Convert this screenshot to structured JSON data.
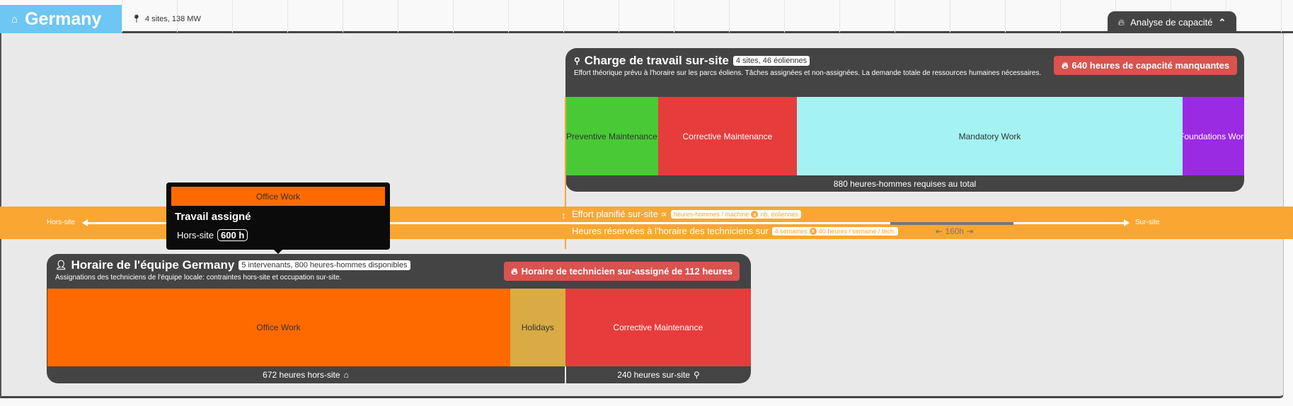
{
  "header": {
    "country": "Germany",
    "home_icon": "home-icon",
    "summary": "4 sites, 138 MW",
    "analyse_button": "Analyse de capacité"
  },
  "scale": {
    "hours_label": "160h",
    "hours": 160,
    "off_site_label": "Hors-site",
    "on_site_label": "Sur-site",
    "effort_text": "Effort planifié sur-site ∝",
    "effort_formula_a": "heures-hommes / machine",
    "effort_formula_b": "nb. éoliennes",
    "reserved_text": "Heures réservées à l'horaire des techniciens sur",
    "reserved_formula_a": "4 semaines",
    "reserved_formula_b": "40 heures / semaine / tech.",
    "times": "x"
  },
  "workload": {
    "title": "Charge de travail sur-site",
    "chip": "4 sites, 46 éoliennes",
    "description": "Effort théorique prévu à l'horaire sur les parcs éoliens. Tâches assignées et non-assignées. La demande totale de ressources humaines nécessaires.",
    "alert": "640 heures de capacité manquantes",
    "segments": [
      {
        "label": "Preventive Maintenance",
        "hours": 120,
        "color": "#4ac936",
        "text": "#333"
      },
      {
        "label": "Corrective Maintenance",
        "hours": 180,
        "color": "#e63c3c",
        "text": "#fff"
      },
      {
        "label": "Mandatory Work",
        "hours": 500,
        "color": "#a5f2f3",
        "text": "#333"
      },
      {
        "label": "Foundations Work",
        "hours": 80,
        "color": "#9b2ae3",
        "text": "#fff"
      }
    ],
    "total": "880 heures-hommes requises au total"
  },
  "team": {
    "title": "Horaire de l'équipe Germany",
    "chip": "5 intervenants, 800 heures-hommes disponibles",
    "description": "Assignations des techniciens de l'équipe locale: contraintes hors-site et occupation sur-site.",
    "alert": "Horaire de technicien sur-assigné de 112 heures",
    "offsite_segments": [
      {
        "label": "Office Work",
        "hours": 600,
        "color": "#ff6a00",
        "text": "#333"
      },
      {
        "label": "Holidays",
        "hours": 72,
        "color": "#d9ab45",
        "text": "#333"
      }
    ],
    "onsite_segments": [
      {
        "label": "Corrective Maintenance",
        "hours": 240,
        "color": "#e63c3c",
        "text": "#fff"
      }
    ],
    "offsite_total": "672 heures hors-site",
    "onsite_total": "240 heures sur-site"
  },
  "tooltip": {
    "bar_label": "Office Work",
    "title": "Travail assigné",
    "row_label": "Hors-site",
    "row_value": "600 h"
  }
}
